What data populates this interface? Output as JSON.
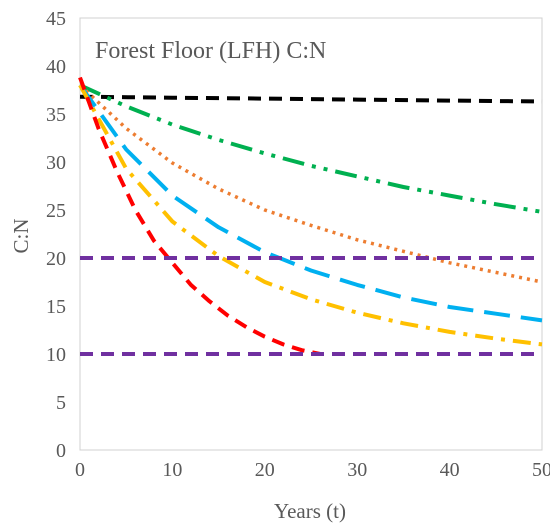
{
  "chart_data": {
    "type": "line",
    "title": "Forest Floor (LFH) C:N",
    "xlabel": "Years (t)",
    "ylabel": "C:N",
    "xlim": [
      0,
      50
    ],
    "ylim": [
      0,
      45
    ],
    "xticks": [
      0,
      10,
      20,
      30,
      40,
      50
    ],
    "yticks": [
      0,
      5,
      10,
      15,
      20,
      25,
      30,
      35,
      40,
      45
    ],
    "grid": false,
    "legend": "none",
    "series": [
      {
        "color": "#000000",
        "dash": "dashed",
        "x": [
          0,
          10,
          20,
          30,
          40,
          50
        ],
        "y": [
          36.8,
          36.7,
          36.6,
          36.5,
          36.4,
          36.3
        ]
      },
      {
        "color": "#00B050",
        "dash": "dash-dot-dot",
        "x": [
          0,
          5,
          10,
          15,
          20,
          25,
          30,
          35,
          40,
          45,
          50
        ],
        "y": [
          38,
          35.8,
          33.9,
          32.3,
          30.9,
          29.6,
          28.5,
          27.4,
          26.5,
          25.6,
          24.8
        ]
      },
      {
        "color": "#ED7D31",
        "dash": "dotted",
        "x": [
          0,
          5,
          10,
          15,
          20,
          25,
          30,
          35,
          40,
          45,
          50
        ],
        "y": [
          38,
          33.5,
          29.9,
          27.2,
          25.0,
          23.4,
          21.9,
          20.7,
          19.5,
          18.5,
          17.5
        ]
      },
      {
        "color": "#00B0F0",
        "dash": "long-dash",
        "x": [
          0,
          5,
          10,
          15,
          20,
          25,
          30,
          35,
          40,
          45,
          50
        ],
        "y": [
          38,
          31.3,
          26.5,
          23.2,
          20.6,
          18.7,
          17.2,
          15.9,
          14.9,
          14.2,
          13.5
        ]
      },
      {
        "color": "#FFC000",
        "dash": "dash-dot",
        "x": [
          0,
          5,
          10,
          15,
          20,
          25,
          30,
          35,
          40,
          45,
          50
        ],
        "y": [
          38,
          29.3,
          23.8,
          20.2,
          17.5,
          15.7,
          14.3,
          13.2,
          12.3,
          11.6,
          11.0
        ]
      },
      {
        "color": "#FF0000",
        "dash": "dashed",
        "x": [
          0,
          2,
          4,
          6,
          8,
          10,
          12,
          14,
          16,
          18,
          20,
          22,
          24,
          26
        ],
        "y": [
          38.8,
          33.5,
          29,
          25,
          21.8,
          19.5,
          17.2,
          15.5,
          14,
          12.8,
          11.8,
          11,
          10.4,
          10
        ]
      },
      {
        "color": "#7030A0",
        "dash": "dashed",
        "x": [
          0,
          50
        ],
        "y": [
          20,
          20
        ]
      },
      {
        "color": "#7030A0",
        "dash": "dashed",
        "x": [
          0,
          50
        ],
        "y": [
          10,
          10
        ]
      }
    ]
  }
}
